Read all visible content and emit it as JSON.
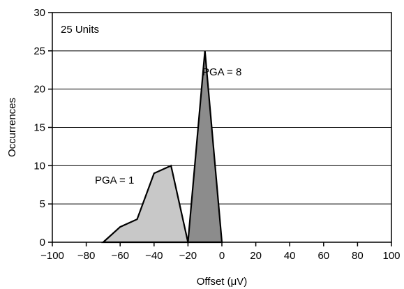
{
  "chart_data": {
    "type": "area",
    "title": "",
    "xlabel": "Offset (μV)",
    "ylabel": "Occurrences",
    "xlim": [
      -100,
      100
    ],
    "ylim": [
      0,
      30
    ],
    "x_ticks": [
      -100,
      -80,
      -60,
      -40,
      -20,
      0,
      20,
      40,
      60,
      80,
      100
    ],
    "x_tick_labels": [
      "−100",
      "−80",
      "−60",
      "−40",
      "−20",
      "0",
      "20",
      "40",
      "60",
      "80",
      "100"
    ],
    "y_ticks": [
      0,
      5,
      10,
      15,
      20,
      25,
      30
    ],
    "y_tick_labels": [
      "0",
      "5",
      "10",
      "15",
      "20",
      "25",
      "30"
    ],
    "grid": "horizontal",
    "legend": "none",
    "inset_text": "25 Units",
    "series": [
      {
        "label": "PGA = 1",
        "color": "#c8c8c8",
        "points": [
          [
            -70,
            0
          ],
          [
            -60,
            2
          ],
          [
            -50,
            3
          ],
          [
            -40,
            9
          ],
          [
            -30,
            10
          ],
          [
            -20,
            0
          ]
        ]
      },
      {
        "label": "PGA = 8",
        "color": "#8c8c8c",
        "points": [
          [
            -20,
            0
          ],
          [
            -10,
            25
          ],
          [
            0,
            0
          ]
        ]
      }
    ]
  }
}
